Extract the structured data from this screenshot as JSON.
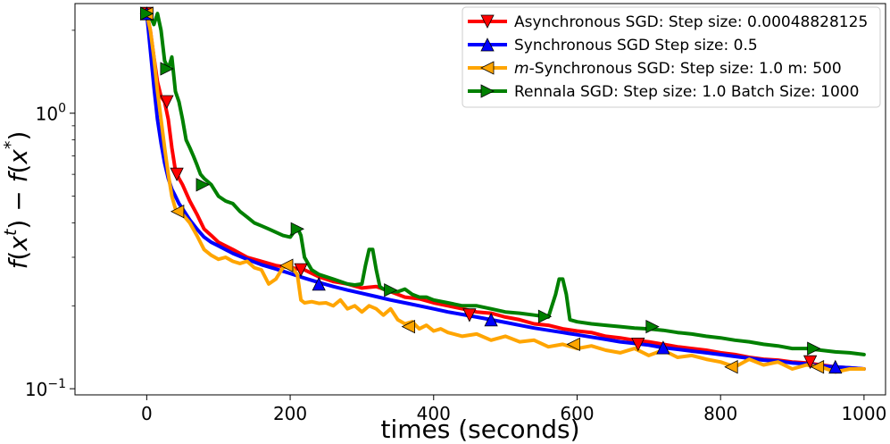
{
  "chart_data": {
    "type": "line",
    "xlabel": "times (seconds)",
    "ylabel": "f(x^t) − f(x^*)",
    "ylabel_parts": {
      "f1": "f",
      "open1": "(",
      "x1": "x",
      "sup1": "t",
      "close1": ")",
      "minus": " − ",
      "f2": "f",
      "open2": "(",
      "x2": "x",
      "sup2": "*",
      "close2": ")"
    },
    "xlim": [
      -100,
      1030
    ],
    "ylim": [
      0.095,
      2.5
    ],
    "yscale": "log",
    "x_ticks": [
      0,
      200,
      400,
      600,
      800,
      1000
    ],
    "x_tick_labels": [
      "0",
      "200",
      "400",
      "600",
      "800",
      "1000"
    ],
    "y_ticks": [
      {
        "value": 1.0,
        "base": "10",
        "exp": "0"
      },
      {
        "value": 0.1,
        "base": "10",
        "exp": "−1"
      }
    ],
    "legend_position": "top-right",
    "series": [
      {
        "name": "Asynchronous SGD: Step size: 0.00048828125",
        "color": "#ff0000",
        "marker": "triangle-down",
        "x": [
          0,
          5,
          10,
          15,
          20,
          25,
          30,
          35,
          40,
          45,
          50,
          60,
          70,
          80,
          90,
          100,
          120,
          140,
          160,
          180,
          200,
          220,
          240,
          260,
          280,
          300,
          320,
          340,
          360,
          380,
          400,
          420,
          440,
          460,
          480,
          500,
          520,
          540,
          560,
          580,
          600,
          620,
          640,
          660,
          680,
          700,
          720,
          740,
          760,
          780,
          800,
          820,
          840,
          860,
          880,
          900,
          920,
          940,
          960,
          980,
          1000
        ],
        "y": [
          2.3,
          2.0,
          1.6,
          1.3,
          1.15,
          1.1,
          0.95,
          0.75,
          0.62,
          0.58,
          0.55,
          0.48,
          0.43,
          0.38,
          0.36,
          0.34,
          0.32,
          0.3,
          0.29,
          0.28,
          0.275,
          0.27,
          0.255,
          0.245,
          0.24,
          0.232,
          0.235,
          0.225,
          0.215,
          0.212,
          0.205,
          0.2,
          0.195,
          0.19,
          0.188,
          0.182,
          0.178,
          0.172,
          0.17,
          0.165,
          0.162,
          0.16,
          0.155,
          0.153,
          0.15,
          0.148,
          0.145,
          0.142,
          0.14,
          0.138,
          0.135,
          0.133,
          0.13,
          0.128,
          0.127,
          0.125,
          0.124,
          0.122,
          0.12,
          0.119,
          0.118
        ],
        "marker_x": [
          0,
          28,
          42,
          215,
          450,
          685,
          925
        ],
        "marker_y": [
          2.3,
          1.1,
          0.6,
          0.27,
          0.185,
          0.145,
          0.125
        ]
      },
      {
        "name": "Synchronous SGD Step size: 0.5",
        "color": "#0000ff",
        "marker": "triangle-up",
        "x": [
          0,
          5,
          10,
          15,
          20,
          25,
          30,
          35,
          40,
          45,
          50,
          60,
          70,
          80,
          90,
          100,
          120,
          140,
          160,
          180,
          200,
          220,
          240,
          260,
          280,
          300,
          320,
          340,
          360,
          380,
          400,
          420,
          440,
          460,
          480,
          500,
          520,
          540,
          560,
          580,
          600,
          620,
          640,
          660,
          680,
          700,
          720,
          740,
          760,
          780,
          800,
          820,
          840,
          860,
          880,
          900,
          920,
          940,
          960,
          980,
          1000
        ],
        "y": [
          2.3,
          1.7,
          1.25,
          0.95,
          0.78,
          0.66,
          0.58,
          0.53,
          0.5,
          0.47,
          0.45,
          0.41,
          0.38,
          0.355,
          0.34,
          0.33,
          0.31,
          0.295,
          0.282,
          0.272,
          0.262,
          0.252,
          0.243,
          0.235,
          0.228,
          0.222,
          0.216,
          0.21,
          0.205,
          0.2,
          0.195,
          0.19,
          0.186,
          0.182,
          0.178,
          0.174,
          0.17,
          0.166,
          0.163,
          0.16,
          0.157,
          0.154,
          0.151,
          0.148,
          0.146,
          0.144,
          0.141,
          0.139,
          0.137,
          0.135,
          0.133,
          0.131,
          0.129,
          0.127,
          0.126,
          0.124,
          0.123,
          0.121,
          0.12,
          0.119,
          0.118
        ],
        "marker_x": [
          0,
          240,
          480,
          720,
          960
        ],
        "marker_y": [
          2.3,
          0.24,
          0.178,
          0.141,
          0.12
        ]
      },
      {
        "name": "m-Synchronous  SGD: Step size: 1.0 m: 500",
        "name_italic": "m",
        "name_rest": "-Synchronous  SGD: Step size: 1.0 m: 500",
        "color": "#ffa500",
        "marker": "triangle-left",
        "x": [
          0,
          5,
          10,
          15,
          20,
          25,
          30,
          35,
          40,
          45,
          50,
          60,
          70,
          80,
          90,
          100,
          110,
          120,
          130,
          140,
          150,
          160,
          170,
          180,
          190,
          200,
          210,
          215,
          220,
          230,
          240,
          250,
          260,
          270,
          280,
          290,
          300,
          310,
          320,
          330,
          340,
          350,
          360,
          370,
          380,
          390,
          400,
          410,
          420,
          440,
          460,
          480,
          500,
          520,
          540,
          560,
          580,
          600,
          620,
          640,
          660,
          680,
          700,
          720,
          740,
          760,
          780,
          800,
          820,
          840,
          860,
          880,
          900,
          920,
          940,
          960,
          980,
          1000
        ],
        "y": [
          2.3,
          2.0,
          1.6,
          1.2,
          0.95,
          0.75,
          0.6,
          0.5,
          0.45,
          0.44,
          0.43,
          0.4,
          0.36,
          0.32,
          0.305,
          0.295,
          0.3,
          0.29,
          0.285,
          0.29,
          0.275,
          0.27,
          0.24,
          0.25,
          0.275,
          0.28,
          0.26,
          0.21,
          0.205,
          0.207,
          0.204,
          0.205,
          0.2,
          0.21,
          0.195,
          0.2,
          0.19,
          0.2,
          0.195,
          0.185,
          0.195,
          0.178,
          0.172,
          0.175,
          0.165,
          0.17,
          0.162,
          0.165,
          0.16,
          0.155,
          0.158,
          0.15,
          0.155,
          0.148,
          0.15,
          0.142,
          0.145,
          0.14,
          0.143,
          0.138,
          0.135,
          0.14,
          0.132,
          0.138,
          0.13,
          0.132,
          0.128,
          0.125,
          0.12,
          0.128,
          0.122,
          0.125,
          0.118,
          0.122,
          0.12,
          0.115,
          0.118,
          0.118
        ],
        "marker_x": [
          0,
          43,
          195,
          365,
          595,
          815,
          935
        ],
        "marker_y": [
          2.3,
          0.44,
          0.28,
          0.168,
          0.145,
          0.12,
          0.12
        ]
      },
      {
        "name": "Rennala SGD: Step size: 1.0 Batch Size: 1000",
        "color": "#008000",
        "marker": "triangle-right",
        "x": [
          0,
          5,
          10,
          15,
          20,
          25,
          30,
          35,
          40,
          45,
          50,
          55,
          60,
          65,
          70,
          75,
          80,
          90,
          100,
          110,
          120,
          130,
          140,
          150,
          160,
          170,
          180,
          190,
          200,
          205,
          210,
          215,
          220,
          230,
          240,
          250,
          260,
          270,
          280,
          290,
          300,
          305,
          310,
          315,
          320,
          325,
          330,
          340,
          350,
          360,
          370,
          380,
          390,
          400,
          420,
          440,
          460,
          480,
          500,
          520,
          540,
          560,
          570,
          575,
          580,
          585,
          590,
          600,
          620,
          640,
          660,
          680,
          700,
          720,
          740,
          760,
          780,
          800,
          820,
          840,
          860,
          880,
          900,
          920,
          940,
          960,
          980,
          1000
        ],
        "y": [
          2.3,
          2.25,
          2.1,
          2.3,
          2.0,
          1.55,
          1.45,
          1.6,
          1.2,
          1.1,
          0.95,
          0.8,
          0.75,
          0.7,
          0.65,
          0.6,
          0.58,
          0.55,
          0.5,
          0.48,
          0.47,
          0.44,
          0.42,
          0.4,
          0.39,
          0.38,
          0.37,
          0.36,
          0.355,
          0.37,
          0.385,
          0.36,
          0.3,
          0.27,
          0.26,
          0.255,
          0.25,
          0.245,
          0.24,
          0.238,
          0.24,
          0.28,
          0.32,
          0.32,
          0.27,
          0.235,
          0.23,
          0.225,
          0.225,
          0.23,
          0.22,
          0.215,
          0.215,
          0.21,
          0.205,
          0.2,
          0.2,
          0.195,
          0.19,
          0.188,
          0.185,
          0.182,
          0.22,
          0.25,
          0.25,
          0.22,
          0.178,
          0.175,
          0.172,
          0.17,
          0.168,
          0.166,
          0.165,
          0.163,
          0.16,
          0.158,
          0.155,
          0.153,
          0.15,
          0.148,
          0.145,
          0.143,
          0.14,
          0.14,
          0.138,
          0.136,
          0.135,
          0.133
        ],
        "marker_x": [
          0,
          28,
          78,
          210,
          340,
          555,
          705,
          930
        ],
        "marker_y": [
          2.3,
          1.45,
          0.55,
          0.38,
          0.228,
          0.183,
          0.168,
          0.14
        ]
      }
    ]
  }
}
